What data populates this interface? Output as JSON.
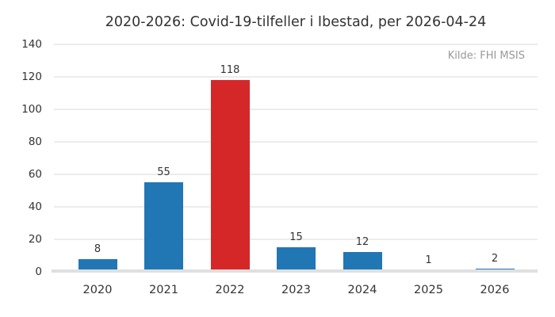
{
  "page": {
    "background": "#ffffff"
  },
  "colors": {
    "bar_blue": "#2077b4",
    "bar_red": "#d62728",
    "gridline": "#ececec",
    "baseline": "#e0e0e0",
    "text_dark": "#333333",
    "text_muted": "#999999"
  },
  "chart_data": {
    "type": "bar",
    "title": "2020-2026: Covid-19-tilfeller i Ibestad, per 2026-04-24",
    "annotation": "Kilde: FHI MSIS",
    "categories": [
      "2020",
      "2021",
      "2022",
      "2023",
      "2024",
      "2025",
      "2026"
    ],
    "values": [
      8,
      55,
      118,
      15,
      12,
      1,
      2
    ],
    "value_labels": [
      "8",
      "55",
      "118",
      "15",
      "12",
      "1",
      "2"
    ],
    "bar_colors": [
      "#2077b4",
      "#2077b4",
      "#d62728",
      "#2077b4",
      "#2077b4",
      "#2077b4",
      "#2077b4"
    ],
    "highlighted_category": "2022",
    "xlabel": "",
    "ylabel": "",
    "ylim": [
      0,
      140
    ],
    "yticks": [
      0,
      20,
      40,
      60,
      80,
      100,
      120,
      140
    ],
    "grid": true,
    "legend_position": "none"
  }
}
